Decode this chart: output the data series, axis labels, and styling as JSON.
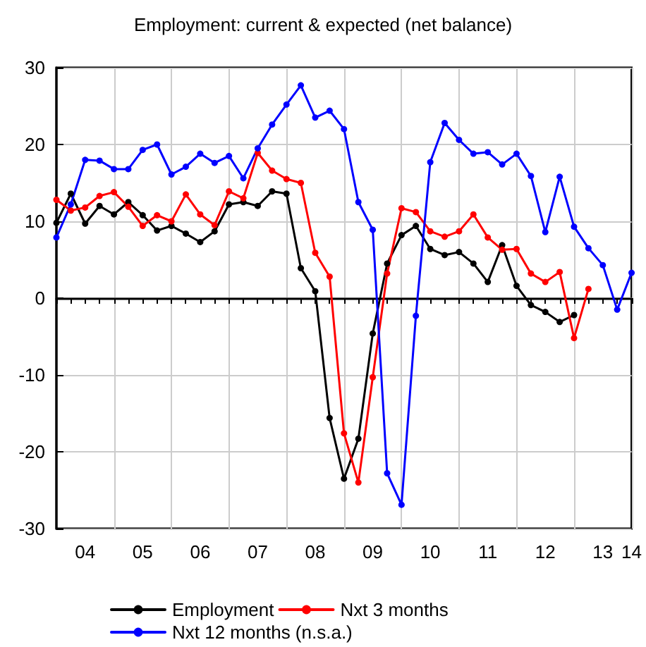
{
  "chart_data": {
    "type": "line",
    "title": "Employment: current & expected (net balance)",
    "categories": [
      null,
      null,
      "04",
      null,
      null,
      null,
      "05",
      null,
      null,
      null,
      "06",
      null,
      null,
      null,
      "07",
      null,
      null,
      null,
      "08",
      null,
      null,
      null,
      "09",
      null,
      null,
      null,
      "10",
      null,
      null,
      null,
      "11",
      null,
      null,
      null,
      "12",
      null,
      null,
      null,
      "13",
      null,
      "14"
    ],
    "series": [
      {
        "name": "Employment",
        "color": "#000000",
        "values": [
          9.8,
          13.6,
          9.7,
          12.0,
          10.9,
          12.5,
          10.8,
          8.8,
          9.4,
          8.4,
          7.3,
          8.7,
          12.2,
          12.5,
          12.0,
          13.9,
          13.6,
          3.9,
          0.9,
          -15.6,
          -23.5,
          -18.3,
          -4.6,
          4.5,
          8.2,
          9.4,
          6.4,
          5.6,
          6.0,
          4.5,
          2.1,
          6.9,
          1.6,
          -0.9,
          -1.8,
          -3.1,
          -2.2,
          null,
          null,
          null,
          null
        ]
      },
      {
        "name": "Nxt 3 months",
        "color": "#ff0000",
        "values": [
          12.8,
          11.4,
          11.8,
          13.3,
          13.8,
          11.9,
          9.4,
          10.8,
          10.0,
          13.5,
          10.9,
          9.5,
          13.9,
          13.0,
          18.9,
          16.6,
          15.5,
          15.0,
          5.9,
          2.8,
          -17.6,
          -24.0,
          -10.3,
          3.2,
          11.7,
          11.2,
          8.7,
          8.0,
          8.7,
          10.9,
          7.9,
          6.3,
          6.4,
          3.2,
          2.1,
          3.4,
          -5.2,
          1.2,
          null,
          null,
          null
        ]
      },
      {
        "name": "Nxt 12 months (n.s.a.)",
        "color": "#0000ff",
        "values": [
          7.9,
          12.2,
          18.0,
          17.9,
          16.8,
          16.8,
          19.3,
          20.0,
          16.1,
          17.1,
          18.8,
          17.6,
          18.5,
          15.6,
          19.5,
          22.6,
          25.2,
          27.7,
          23.5,
          24.4,
          22.0,
          12.5,
          8.9,
          -22.8,
          -26.9,
          -2.3,
          17.7,
          22.8,
          20.6,
          18.8,
          19.0,
          17.4,
          18.8,
          15.9,
          8.6,
          15.8,
          9.3,
          6.5,
          4.3,
          -1.5,
          3.3
        ]
      }
    ],
    "ylim": [
      -30,
      30
    ],
    "yticks": [
      -30,
      -20,
      -10,
      0,
      10,
      20,
      30
    ],
    "grid": true,
    "legend": "bottom",
    "marker": "circle",
    "line_style": "solid"
  }
}
